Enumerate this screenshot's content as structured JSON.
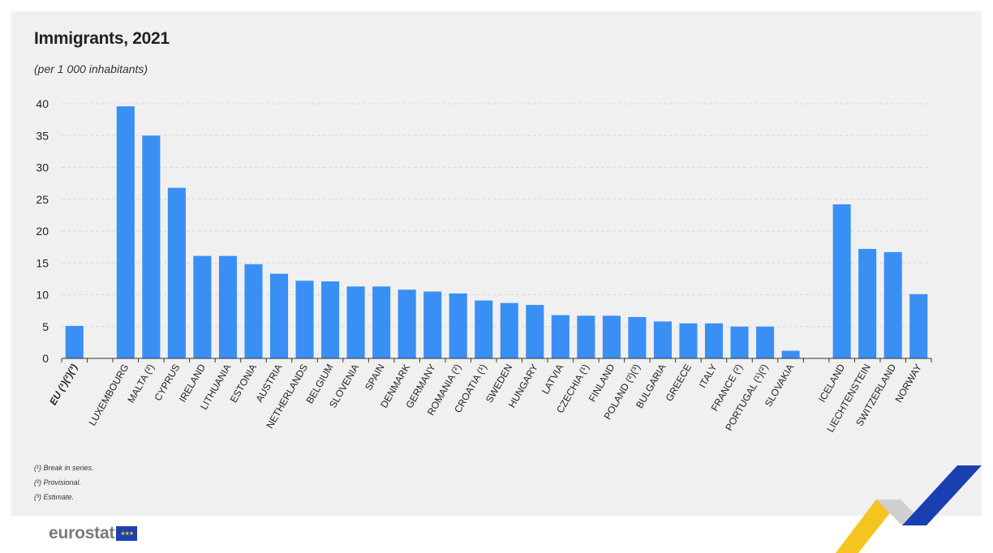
{
  "chart_data": {
    "type": "bar",
    "title": "Immigrants, 2021",
    "subtitle": "(per 1 000 inhabitants)",
    "xlabel": "",
    "ylabel": "",
    "ylim": [
      0,
      40
    ],
    "yticks": [
      0,
      5,
      10,
      15,
      20,
      25,
      30,
      35,
      40
    ],
    "grid": true,
    "color": "#3a8ff4",
    "categories": [
      "EU (¹)(²)(³)",
      "",
      "LUXEMBOURG",
      "MALTA (²)",
      "CYPRUS",
      "IRELAND",
      "LITHUANIA",
      "ESTONIA",
      "AUSTRIA",
      "NETHERLANDS",
      "BELGIUM",
      "SLOVENIA",
      "SPAIN",
      "DENMARK",
      "GERMANY",
      "ROMANIA (²)",
      "CROATIA (¹)",
      "SWEDEN",
      "HUNGARY",
      "LATVIA",
      "CZECHIA (¹)",
      "FINLAND",
      "POLAND (²)(³)",
      "BULGARIA",
      "GREECE",
      "ITALY",
      "FRANCE (²)",
      "PORTUGAL (¹)(²)",
      "SLOVAKIA",
      "",
      "ICELAND",
      "LIECHTENSTEIN",
      "SWITZERLAND",
      "NORWAY"
    ],
    "values": [
      5.1,
      null,
      39.6,
      35.0,
      26.8,
      16.1,
      16.1,
      14.8,
      13.3,
      12.2,
      12.1,
      11.3,
      11.3,
      10.8,
      10.5,
      10.2,
      9.1,
      8.7,
      8.4,
      6.8,
      6.7,
      6.7,
      6.5,
      5.8,
      5.5,
      5.5,
      5.0,
      5.0,
      1.2,
      null,
      24.2,
      17.2,
      16.7,
      10.1
    ],
    "bold_categories": [
      "EU (¹)(²)(³)"
    ]
  },
  "footnotes": {
    "n1": "(¹) Break in series.",
    "n2": "(²) Provisional.",
    "n3": "(³) Estimate."
  },
  "logo": {
    "text": "eurostat"
  }
}
